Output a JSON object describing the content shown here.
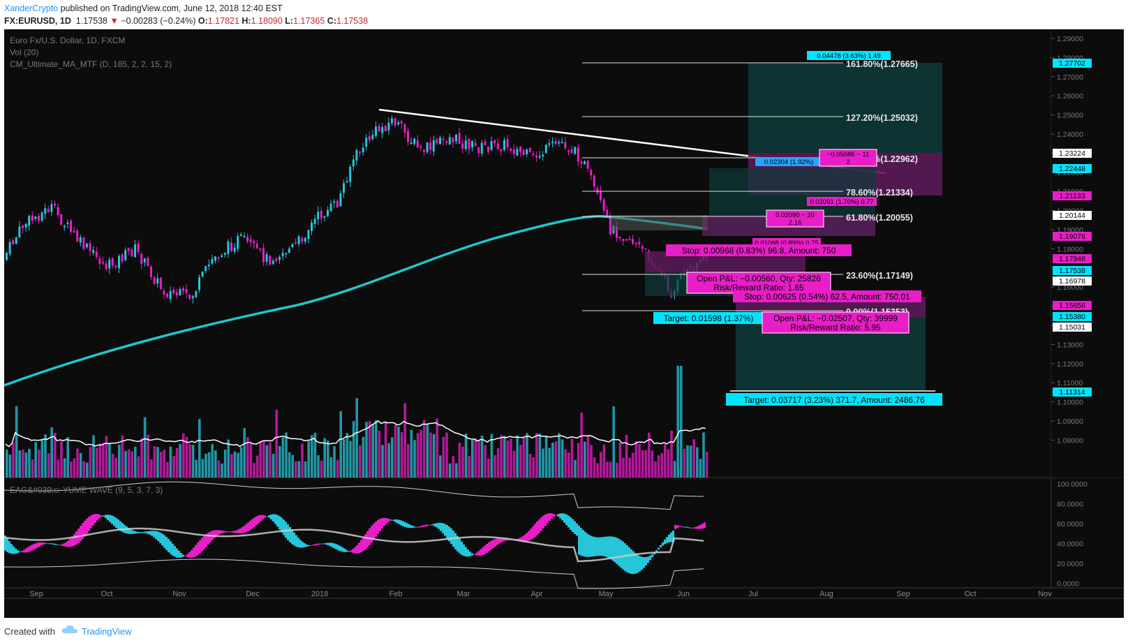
{
  "header": {
    "author": "XanderCrypto",
    "published": "published on TradingView.com, June 12, 2018 12:40 EST",
    "symbol": "FX:EURUSD, 1D",
    "last": "1.17538",
    "change": "−0.00283 (−0.24%)",
    "o_label": "O:",
    "o_value": "1.17821",
    "h_label": "H:",
    "h_value": "1.18090",
    "l_label": "L:",
    "l_value": "1.17365",
    "c_label": "C:",
    "c_value": "1.17538"
  },
  "legend": {
    "title": "Euro Fx/U.S. Dollar, 1D, FXCM",
    "vol": "Vol (20)",
    "ma": "CM_Ultimate_MA_MTF (D, 185, 2, 2, 15, 2)",
    "wave": "EAG&#039;s: YUME WAVE (9, 5, 3, 7, 3)"
  },
  "time_axis": [
    "Sep",
    "Oct",
    "Nov",
    "Dec",
    "2018",
    "Feb",
    "Mar",
    "Apr",
    "May",
    "Jun",
    "Jul",
    "Aug",
    "Sep",
    "Oct",
    "Nov"
  ],
  "price_axis": [
    "1.29000",
    "1.28000",
    "1.27000",
    "1.26000",
    "1.25000",
    "1.24000",
    "1.23000",
    "1.22000",
    "1.21000",
    "1.20000",
    "1.19000",
    "1.18000",
    "1.17000",
    "1.16000",
    "1.15000",
    "1.14000",
    "1.13000",
    "1.12000",
    "1.11000",
    "1.10000",
    "1.09000",
    "1.08000"
  ],
  "osc_axis": [
    "100.0000",
    "80.0000",
    "60.0000",
    "40.0000",
    "20.0000",
    "0.0000"
  ],
  "price_tags": [
    {
      "label": "1.27702",
      "color": "#00e5ff"
    },
    {
      "label": "1.23224",
      "color": "#ffffff"
    },
    {
      "label": "1.22448",
      "color": "#00e5ff"
    },
    {
      "label": "1.21133",
      "color": "#e91ec8"
    },
    {
      "label": "1.20144",
      "color": "#ffffff"
    },
    {
      "label": "1.19076",
      "color": "#e91ec8"
    },
    {
      "label": "1.17946",
      "color": "#e91ec8"
    },
    {
      "label": "1.17538",
      "color": "#00e5ff"
    },
    {
      "label": "1.16978",
      "color": "#ffffff"
    },
    {
      "label": "1.15656",
      "color": "#e91ec8"
    },
    {
      "label": "1.15380",
      "color": "#00e5ff"
    },
    {
      "label": "1.15031",
      "color": "#ffffff"
    },
    {
      "label": "1.11314",
      "color": "#00e5ff"
    }
  ],
  "fib": [
    {
      "label": "161.80%(1.27665)"
    },
    {
      "label": "127.20%(1.25032)"
    },
    {
      "label": "100.00%(1.22962)"
    },
    {
      "label": "78.60%(1.21334)"
    },
    {
      "label": "61.80%(1.20055)"
    },
    {
      "label": "23.60%(1.17149)"
    },
    {
      "label": "0.00%(1.15353)"
    }
  ],
  "boxes": {
    "top_profit": "0.04478 (3.63%) 1.49",
    "mid_info": "0.02304 (1.92%)",
    "stop_small": "−0.05686 − 11",
    "stop_small2": "2",
    "b2": "0.02091 (1.70%) 0.77",
    "b3": "0.02090 − 20",
    "b3b": "2.16",
    "b4": "0.01068 (0.89%) 0.75",
    "stop1": "Stop: 0.00968 (0.83%) 96.8, Amount: 750",
    "pnl1": "Open P&L: −0.00560, Qty: 25826",
    "rr1": "Risk/Reward Ratio: 1.65",
    "stop2": "Stop: 0.00625 (0.54%) 62.5, Amount: 750.01",
    "target1": "Target: 0.01598 (1.37%)",
    "pnl2": "Open P&L: −0.02507, Qty: 39999",
    "rr2": "Risk/Reward Ratio: 5.95",
    "target2": "Target: 0.03717 (3.23%) 371.7, Amount: 2486.76"
  },
  "footer": {
    "created": "Created with",
    "brand": "TradingView"
  },
  "colors": {
    "bull": "#26c6da",
    "bear": "#e91ec8",
    "ma": "#1ec8c8",
    "bg": "#0c0c0c"
  }
}
